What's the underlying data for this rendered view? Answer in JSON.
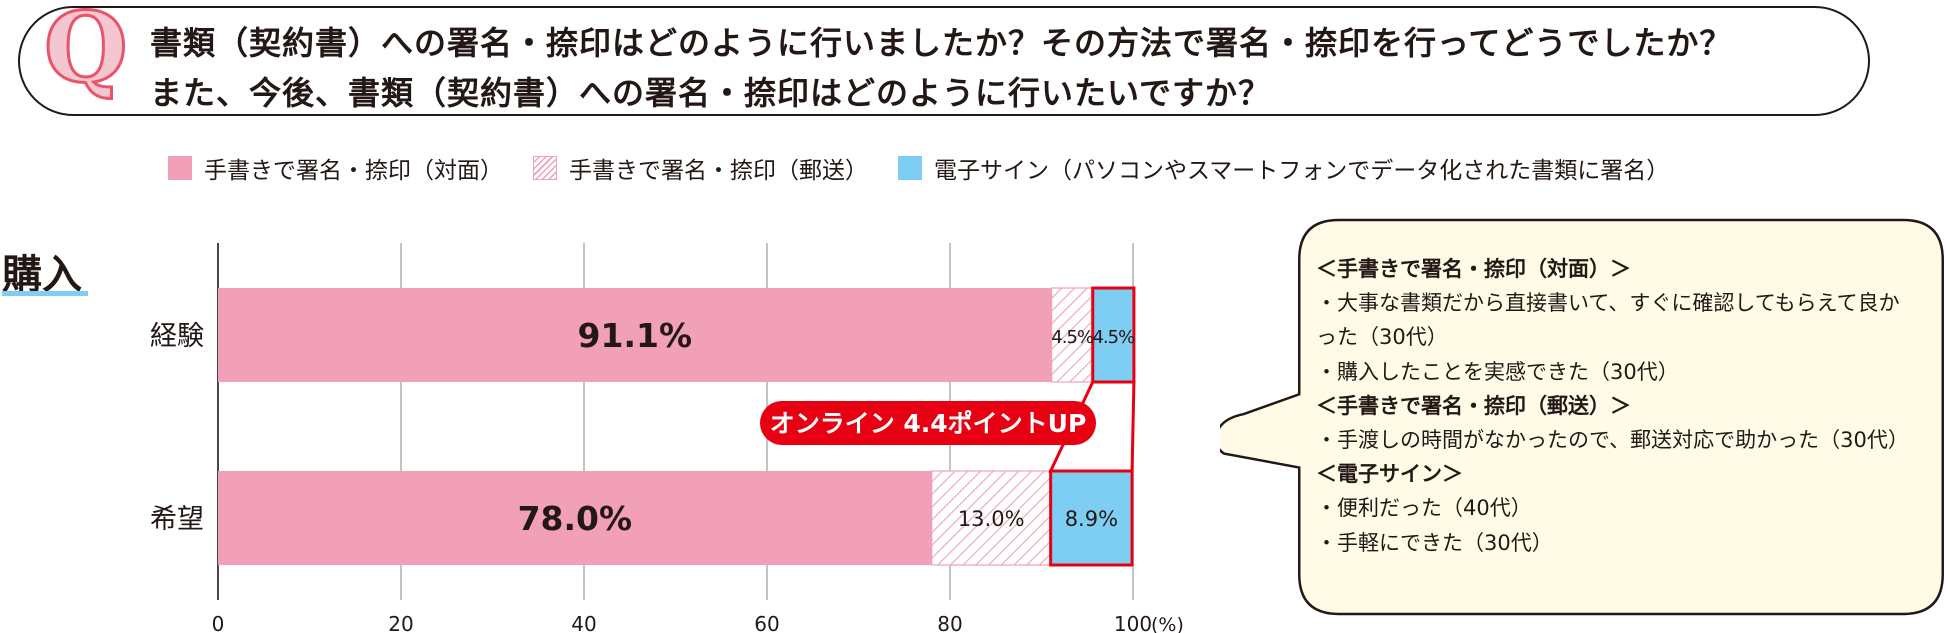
{
  "question": {
    "mark": "Q",
    "line1": "書類（契約書）への署名・捺印はどのように行いましたか？その方法で署名・捺印を行ってどうでしたか？",
    "line2": "また、今後、書類（契約書）への署名・捺印はどのように行いたいですか？"
  },
  "colors": {
    "face_to_face": "#f1a0b8",
    "mail_hatch": "#f1a0b8",
    "electronic": "#7ecef4",
    "highlight": "#e60012",
    "grid": "#9d9d9d",
    "comment_bg": "#fffbe6"
  },
  "section_label": "購入",
  "chart_data": {
    "type": "bar",
    "orientation": "horizontal",
    "stacked": true,
    "categories": [
      "経験",
      "希望"
    ],
    "series": [
      {
        "name": "手書きで署名・捺印（対面）",
        "values": [
          91.1,
          78.0
        ],
        "pattern": "solid",
        "labels": [
          "91.1%",
          "78.0%"
        ]
      },
      {
        "name": "手書きで署名・捺印（郵送）",
        "values": [
          4.5,
          13.0
        ],
        "pattern": "hatch",
        "labels": [
          "4.5%",
          "13.0%"
        ]
      },
      {
        "name": "電子サイン（パソコンやスマートフォンでデータ化された書類に署名）",
        "values": [
          4.5,
          8.9
        ],
        "pattern": "solid",
        "labels": [
          "4.5%",
          "8.9%"
        ]
      }
    ],
    "xlim": [
      0,
      100
    ],
    "xticks": [
      "0",
      "20",
      "40",
      "60",
      "80",
      "100"
    ],
    "x_unit": "(%)",
    "grid": true,
    "legend_position": "top",
    "annotation": "オンライン 4.4ポイントUP"
  },
  "comments": [
    {
      "kind": "heading",
      "text": "＜手書きで署名・捺印（対面）＞"
    },
    {
      "kind": "item",
      "text": "・大事な書類だから直接書いて、すぐに確認してもらえて良かった（30代）"
    },
    {
      "kind": "item",
      "text": "・購入したことを実感できた（30代）"
    },
    {
      "kind": "heading",
      "text": "＜手書きで署名・捺印（郵送）＞"
    },
    {
      "kind": "item",
      "text": "・手渡しの時間がなかったので、郵送対応で助かった（30代）"
    },
    {
      "kind": "heading",
      "text": "＜電子サイン＞"
    },
    {
      "kind": "item",
      "text": "・便利だった（40代）"
    },
    {
      "kind": "item",
      "text": "・手軽にできた（30代）"
    }
  ]
}
